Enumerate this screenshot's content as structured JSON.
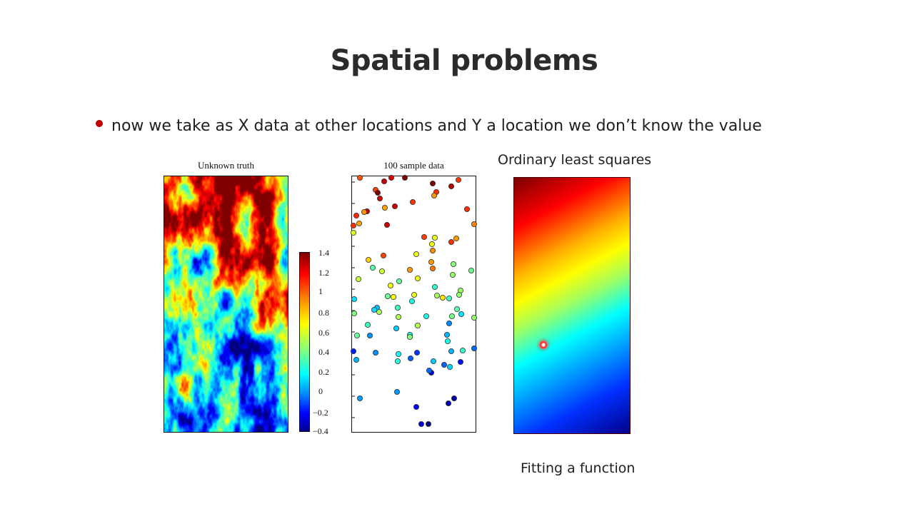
{
  "slide": {
    "title": "Spatial problems",
    "bullet": "now we take as X data at other locations and Y a location we don’t know the value",
    "bullet_color": "#c00000"
  },
  "figures": {
    "truth_title": "Unknown truth",
    "sample_title": "100 sample data",
    "ols_title": "Ordinary least squares",
    "caption": "Fitting a function"
  },
  "colorbar": {
    "ticks": [
      "1.4",
      "1.2",
      "1",
      "0.8",
      "0.6",
      "0.4",
      "0.2",
      "0",
      "−0.2",
      "−0.4"
    ],
    "colormap": "jet"
  }
}
